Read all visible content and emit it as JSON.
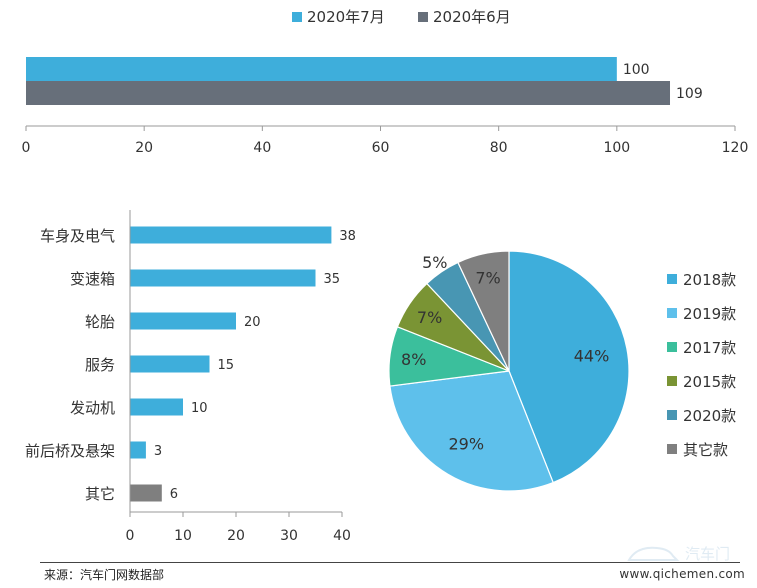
{
  "chart_data": [
    {
      "type": "bar",
      "orientation": "horizontal",
      "legend": "top",
      "series": [
        {
          "name": "2020年7月",
          "values": [
            100
          ],
          "color": "#3eaedb"
        },
        {
          "name": "2020年6月",
          "values": [
            109
          ],
          "color": "#676f7a"
        }
      ],
      "xlim": [
        0,
        120
      ],
      "xticks": [
        0,
        20,
        40,
        60,
        80,
        100,
        120
      ],
      "value_labels": [
        "100",
        "109"
      ],
      "tick_labels": [
        "0",
        "20",
        "40",
        "60",
        "80",
        "100",
        "120"
      ]
    },
    {
      "type": "bar",
      "orientation": "horizontal",
      "categories": [
        "车身及电气",
        "变速箱",
        "轮胎",
        "服务",
        "发动机",
        "前后桥及悬架",
        "其它"
      ],
      "values": [
        38,
        35,
        20,
        15,
        10,
        3,
        6
      ],
      "value_labels": [
        "38",
        "35",
        "20",
        "15",
        "10",
        "3",
        "6"
      ],
      "colors": [
        "#3eaedb",
        "#3eaedb",
        "#3eaedb",
        "#3eaedb",
        "#3eaedb",
        "#3eaedb",
        "#7f7f7f"
      ],
      "xlim": [
        0,
        40
      ],
      "xticks": [
        0,
        10,
        20,
        30,
        40
      ],
      "tick_labels": [
        "0",
        "10",
        "20",
        "30",
        "40"
      ]
    },
    {
      "type": "pie",
      "legend": "right",
      "slices": [
        {
          "label": "2018款",
          "value": 44,
          "text": "44%",
          "color": "#3eaedb"
        },
        {
          "label": "2019款",
          "value": 29,
          "text": "29%",
          "color": "#5ec0eb"
        },
        {
          "label": "2017款",
          "value": 8,
          "text": "8%",
          "color": "#3bbf9c"
        },
        {
          "label": "2015款",
          "value": 7,
          "text": "7%",
          "color": "#7a9434"
        },
        {
          "label": "2020款",
          "value": 5,
          "text": "5%",
          "color": "#4896b3"
        },
        {
          "label": "其它款",
          "value": 7,
          "text": "7%",
          "color": "#7f7f7f"
        }
      ]
    }
  ],
  "footer": {
    "source": "来源：汽车门网数据部",
    "site": "www.qichemen.com",
    "watermark": "汽车门"
  },
  "colors": {
    "axis": "#9a9a9a",
    "text": "#333333"
  }
}
